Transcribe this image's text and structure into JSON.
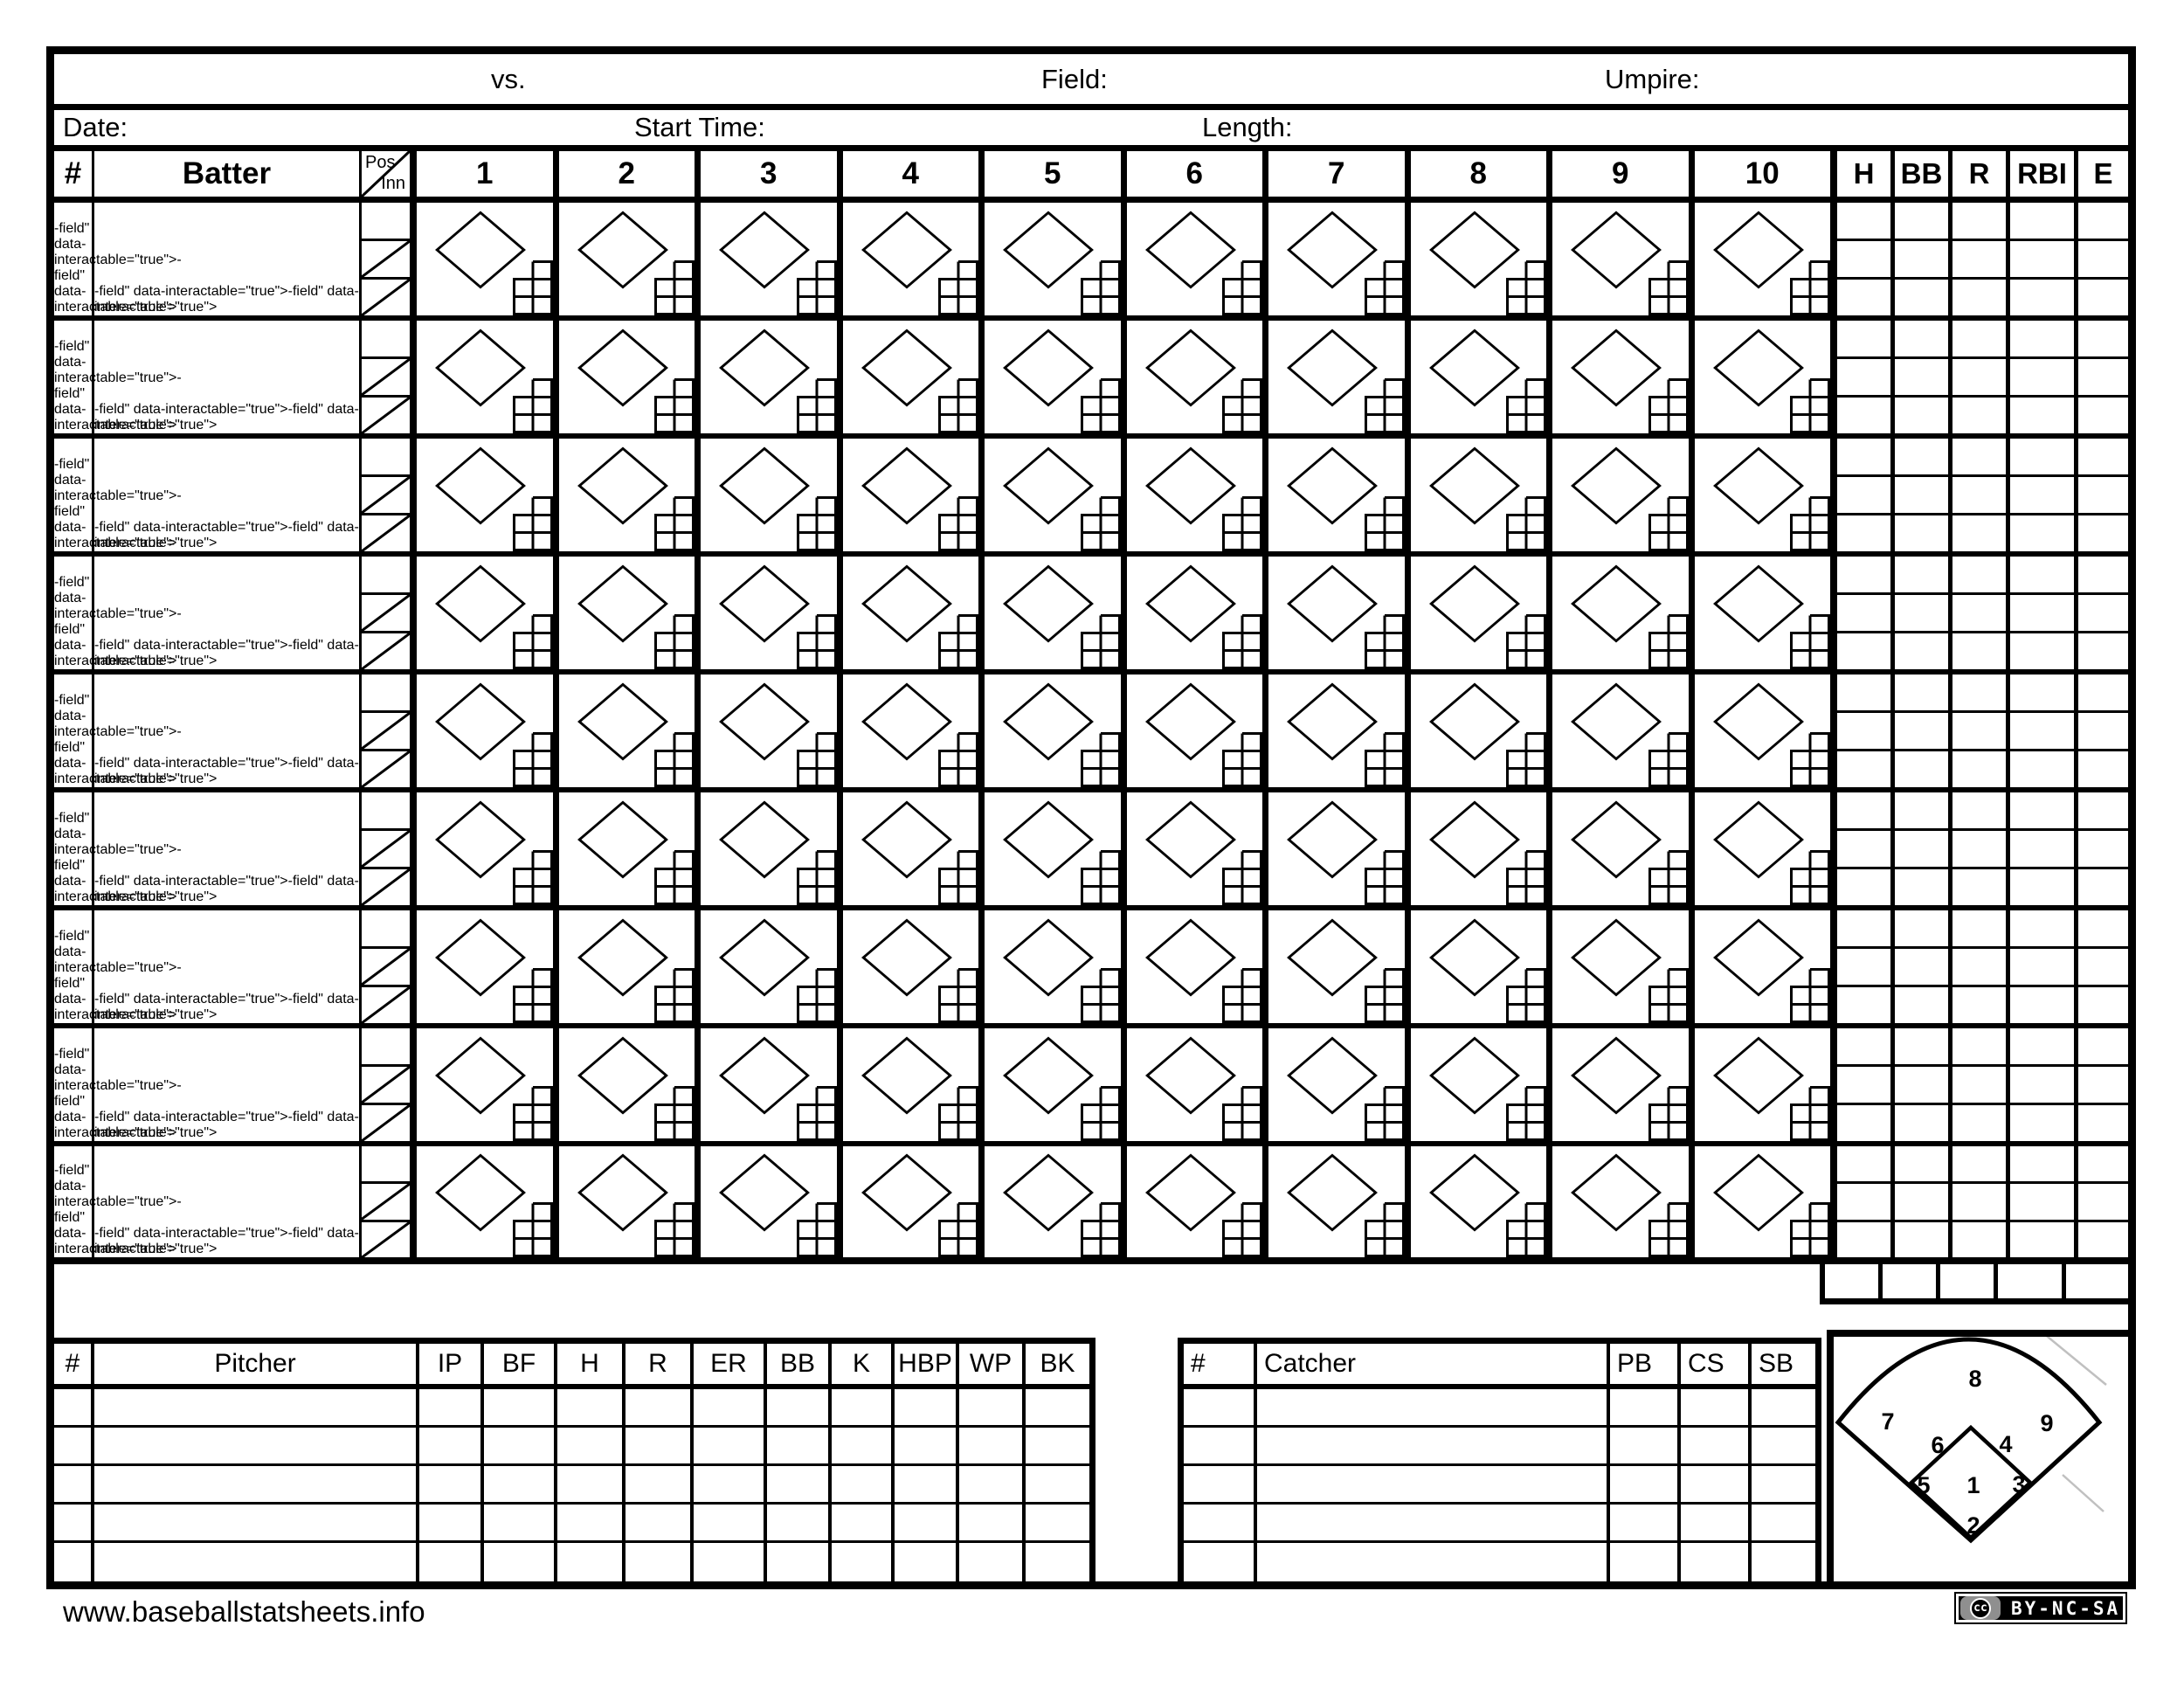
{
  "header": {
    "vs_label": "vs.",
    "field_label": "Field:",
    "umpire_label": "Umpire:",
    "date_label": "Date:",
    "start_time_label": "Start Time:",
    "length_label": "Length:"
  },
  "grid": {
    "num_label": "#",
    "batter_label": "Batter",
    "pos_label": "Pos",
    "inn_label": "Inn",
    "innings": [
      "1",
      "2",
      "3",
      "4",
      "5",
      "6",
      "7",
      "8",
      "9",
      "10"
    ],
    "stat_columns": [
      "H",
      "BB",
      "R",
      "RBI",
      "E"
    ],
    "batter_rows": 9,
    "subrows_per_batter": 3
  },
  "pitcher_table": {
    "num_label": "#",
    "name_label": "Pitcher",
    "columns": [
      "IP",
      "BF",
      "H",
      "R",
      "ER",
      "BB",
      "K",
      "HBP",
      "WP",
      "BK"
    ],
    "rows": 5
  },
  "catcher_table": {
    "num_label": "#",
    "name_label": "Catcher",
    "columns": [
      "PB",
      "CS",
      "SB"
    ],
    "rows": 5
  },
  "field_diagram": {
    "positions": [
      "1",
      "2",
      "3",
      "4",
      "5",
      "6",
      "7",
      "8",
      "9"
    ]
  },
  "footer": {
    "website": "www.baseballstatsheets.info",
    "cc_label": "cc",
    "license": "BY-NC-SA"
  },
  "colors": {
    "ink": "#000000",
    "paper": "#ffffff",
    "faint_line": "#c0c0c0"
  }
}
